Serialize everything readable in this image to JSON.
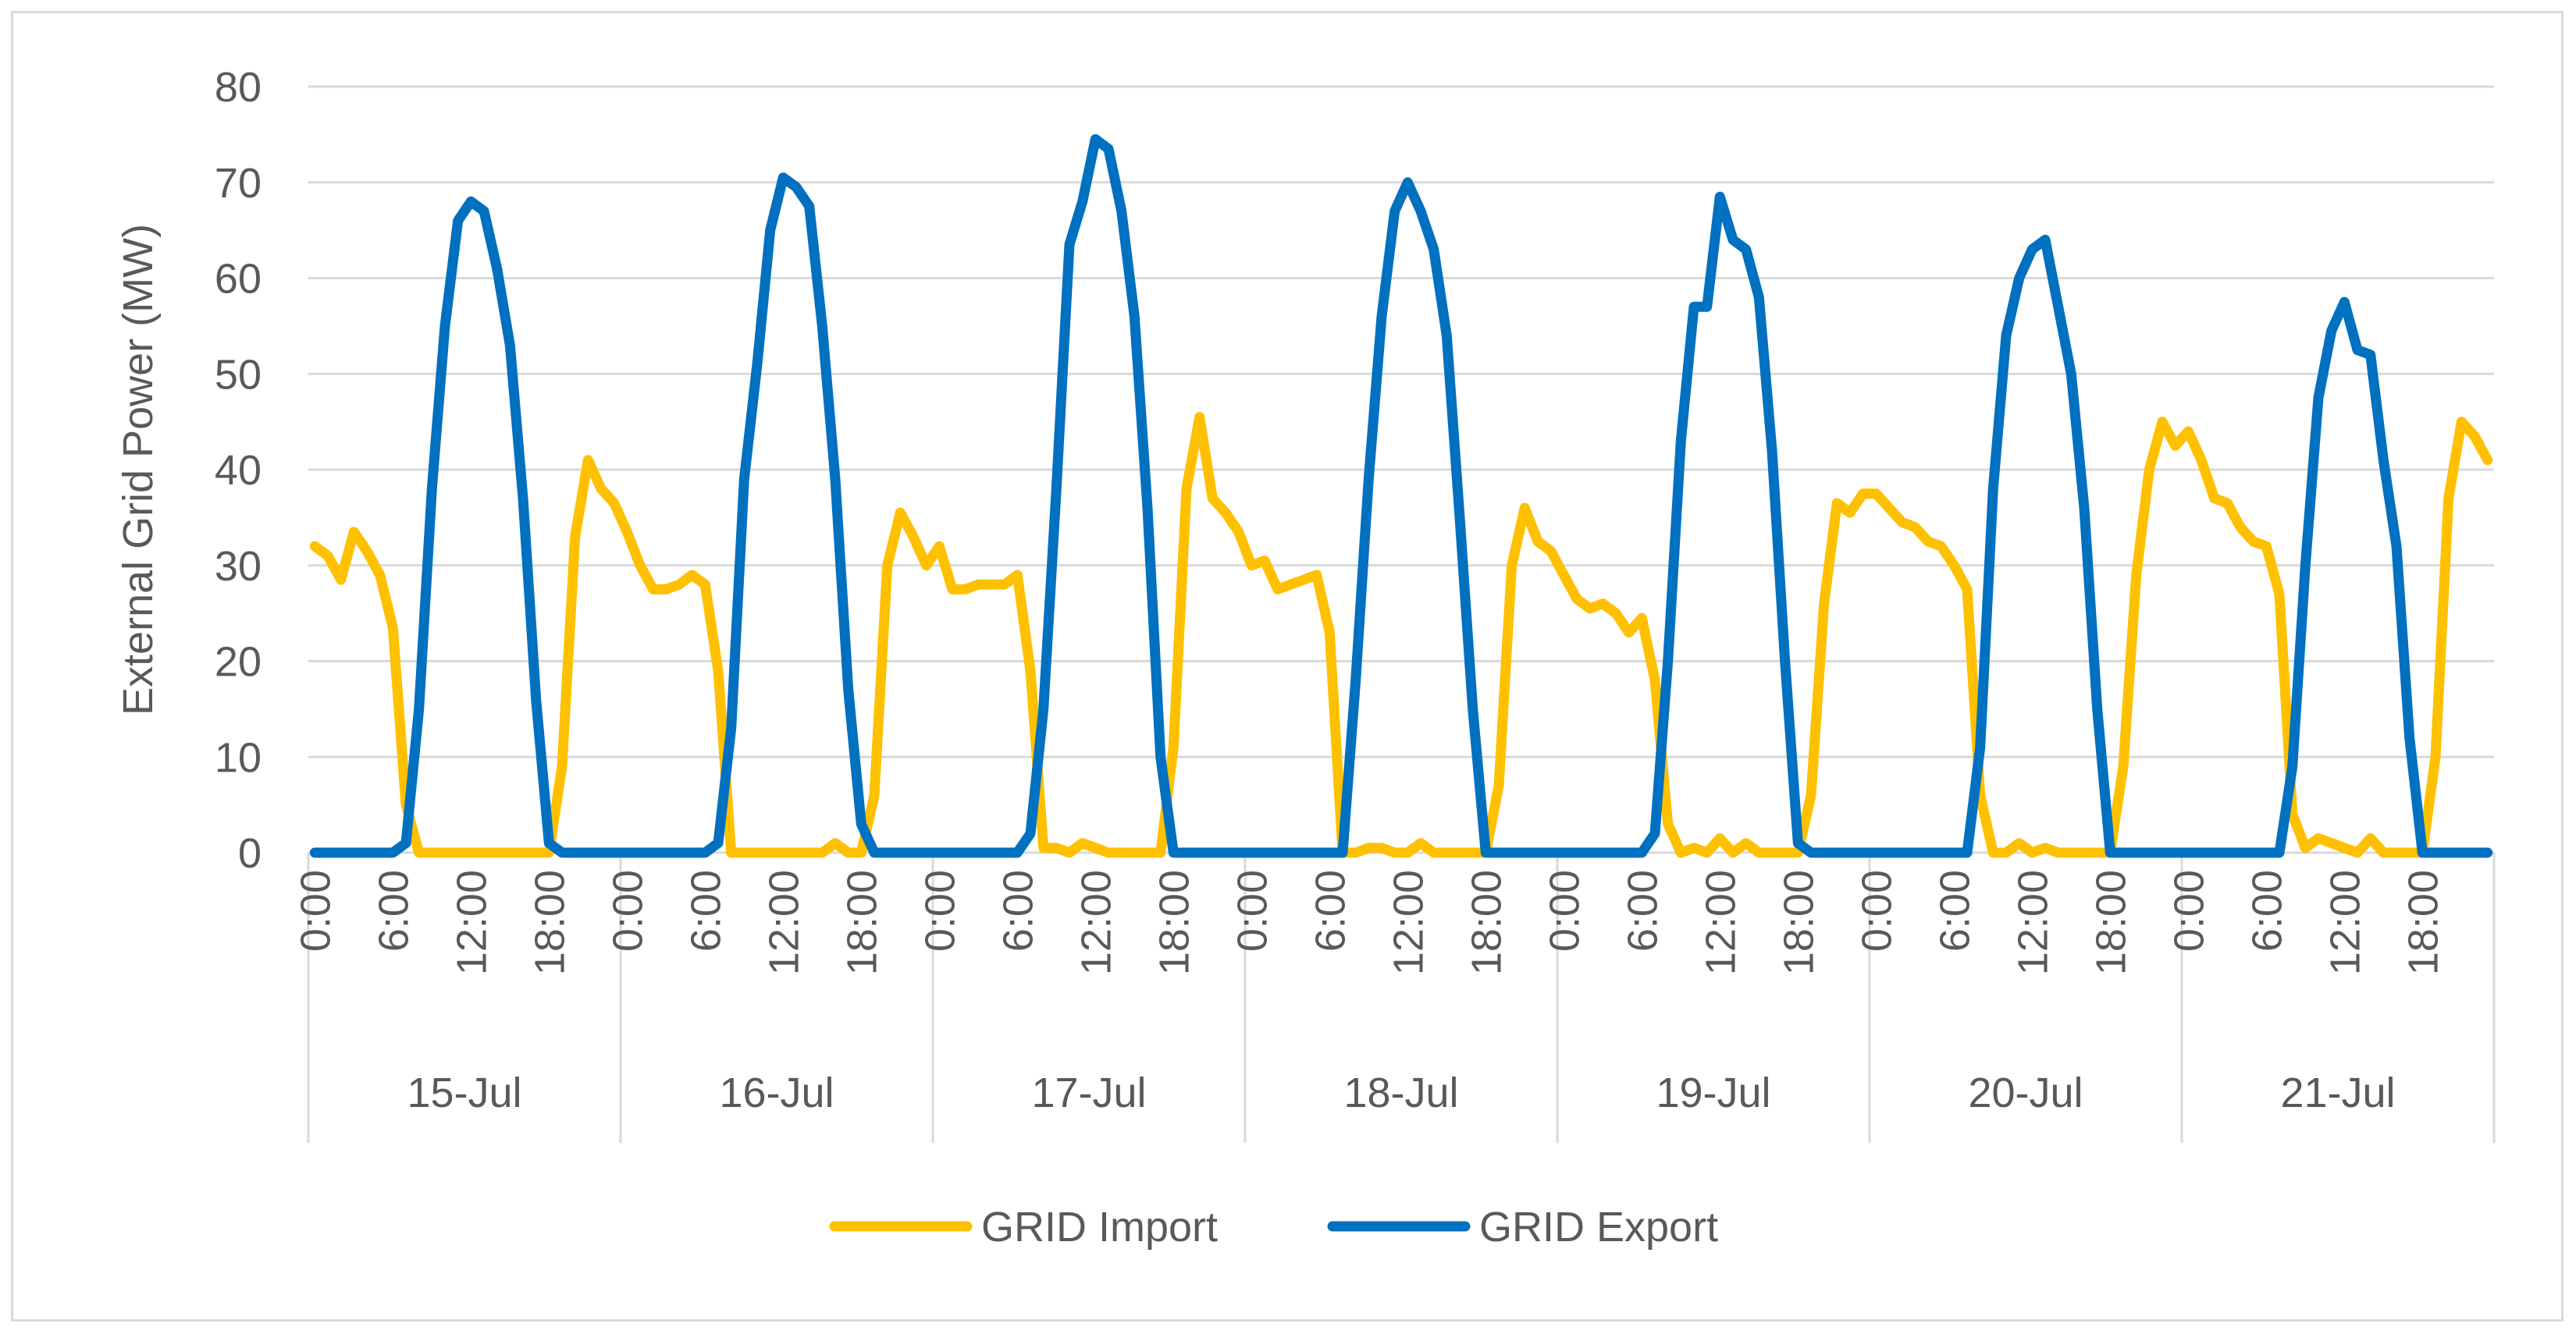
{
  "chart_data": {
    "type": "line",
    "title": "",
    "xlabel": "",
    "ylabel": "External Grid Power (MW)",
    "ylim": [
      0,
      80
    ],
    "y_ticks": [
      0,
      10,
      20,
      30,
      40,
      50,
      60,
      70,
      80
    ],
    "grid": true,
    "legend": "bottom-center",
    "x_hour_labels": [
      "0:00",
      "6:00",
      "12:00",
      "18:00"
    ],
    "days": [
      "15-Jul",
      "16-Jul",
      "17-Jul",
      "18-Jul",
      "19-Jul",
      "20-Jul",
      "21-Jul"
    ],
    "hours_per_point": 1,
    "series": [
      {
        "name": "GRID Import",
        "color": "#FFC000",
        "values": [
          32,
          31,
          28.5,
          33.5,
          31.5,
          29,
          23.5,
          5,
          0,
          0,
          0,
          0,
          0,
          0,
          0,
          0,
          0,
          0,
          0,
          9,
          33,
          41,
          38,
          36.5,
          33.5,
          30,
          27.5,
          27.5,
          28,
          29,
          28,
          19,
          0,
          0,
          0,
          0,
          0,
          0,
          0,
          0,
          1,
          0,
          0,
          6,
          30,
          35.5,
          33,
          30,
          32,
          27.5,
          27.5,
          28,
          28,
          28,
          29,
          19,
          0.5,
          0.5,
          0,
          1,
          0.5,
          0,
          0,
          0,
          0,
          0,
          11,
          38,
          45.5,
          37,
          35.5,
          33.5,
          30,
          30.5,
          27.5,
          28,
          28.5,
          29,
          23,
          0,
          0,
          0.5,
          0.5,
          0,
          0,
          1,
          0,
          0,
          0,
          0,
          0,
          7,
          30,
          36,
          32.5,
          31.5,
          29,
          26.5,
          25.5,
          26,
          25,
          23,
          24.5,
          18,
          3,
          0,
          0.5,
          0,
          1.5,
          0,
          1,
          0,
          0,
          0,
          0,
          6,
          26,
          36.5,
          35.5,
          37.5,
          37.5,
          36,
          34.5,
          34,
          32.5,
          32,
          30,
          27.5,
          6,
          0,
          0,
          1,
          0,
          0.5,
          0,
          0,
          0,
          0,
          0,
          9,
          29,
          40,
          45,
          42.5,
          44,
          41,
          37,
          36.5,
          34,
          32.5,
          32,
          27,
          4,
          0.5,
          1.5,
          1,
          0.5,
          0,
          1.5,
          0,
          0,
          0,
          0,
          10,
          37,
          45,
          43.5,
          41
        ]
      },
      {
        "name": "GRID Export",
        "color": "#0070C0",
        "values": [
          0,
          0,
          0,
          0,
          0,
          0,
          0,
          1,
          15,
          38,
          55,
          66,
          68,
          67,
          61,
          53,
          37,
          16,
          1,
          0,
          0,
          0,
          0,
          0,
          0,
          0,
          0,
          0,
          0,
          0,
          0,
          1,
          13,
          39,
          51,
          65,
          70.5,
          69.5,
          67.5,
          55,
          39,
          17,
          3,
          0,
          0,
          0,
          0,
          0,
          0,
          0,
          0,
          0,
          0,
          0,
          0,
          2,
          15,
          38,
          63.5,
          68,
          74.5,
          73.5,
          67,
          56,
          36,
          10,
          0,
          0,
          0,
          0,
          0,
          0,
          0,
          0,
          0,
          0,
          0,
          0,
          0,
          0,
          18,
          39,
          56,
          67,
          70,
          67,
          63,
          54,
          35,
          15,
          0,
          0,
          0,
          0,
          0,
          0,
          0,
          0,
          0,
          0,
          0,
          0,
          0,
          2,
          20,
          43,
          57,
          57,
          68.5,
          64,
          63,
          58,
          42,
          20,
          1,
          0,
          0,
          0,
          0,
          0,
          0,
          0,
          0,
          0,
          0,
          0,
          0,
          0,
          11,
          38,
          54,
          60,
          63,
          64,
          57,
          50,
          36,
          15,
          0,
          0,
          0,
          0,
          0,
          0,
          0,
          0,
          0,
          0,
          0,
          0,
          0,
          0,
          9,
          30,
          47.5,
          54.5,
          57.5,
          52.5,
          52,
          41,
          32,
          12,
          0,
          0,
          0,
          0,
          0,
          0
        ]
      }
    ]
  }
}
